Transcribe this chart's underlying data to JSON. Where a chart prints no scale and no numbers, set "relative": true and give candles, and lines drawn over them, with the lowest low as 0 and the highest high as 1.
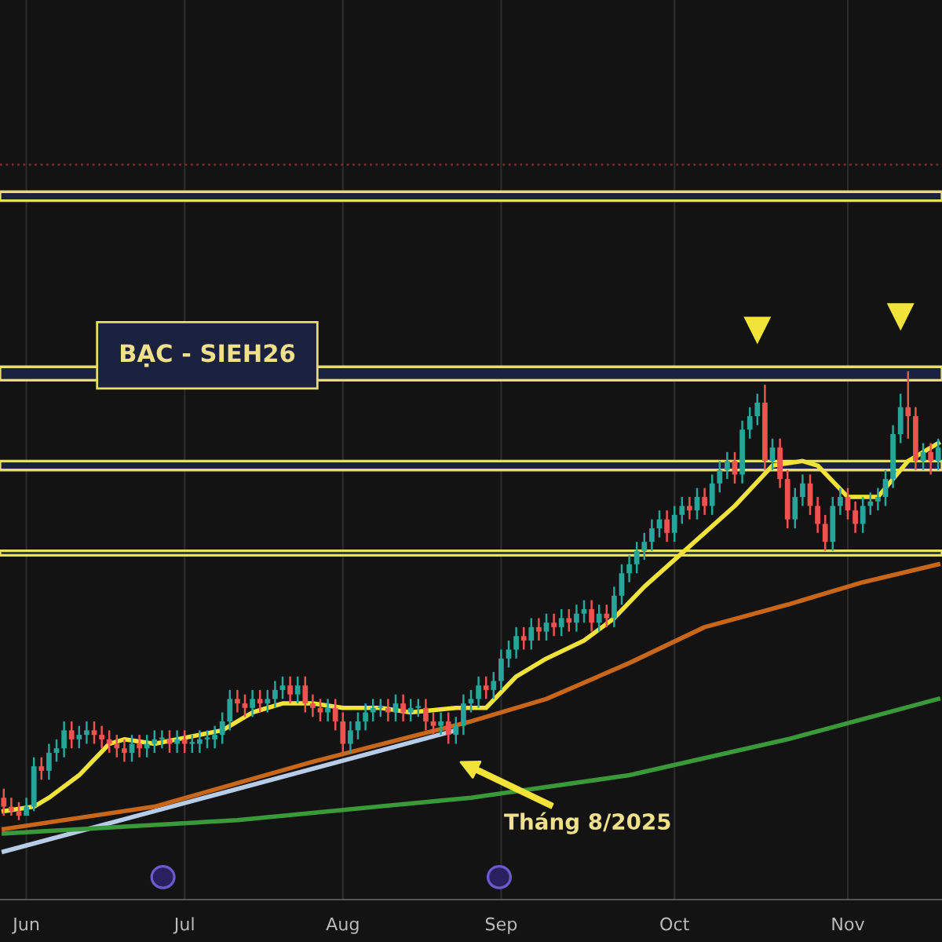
{
  "chart_data": {
    "type": "candlestick",
    "title": "BẠC - SIEH26",
    "relative": true,
    "grid": "x",
    "categories": [
      null,
      null,
      null,
      "Jun",
      null,
      null,
      null,
      null,
      null,
      null,
      null,
      null,
      null,
      null,
      null,
      null,
      null,
      null,
      null,
      null,
      null,
      null,
      null,
      null,
      "Jul",
      null,
      null,
      null,
      null,
      null,
      null,
      null,
      null,
      null,
      null,
      null,
      null,
      null,
      null,
      null,
      null,
      null,
      null,
      null,
      null,
      "Aug",
      null,
      null,
      null,
      null,
      null,
      null,
      null,
      null,
      null,
      null,
      null,
      null,
      null,
      null,
      null,
      null,
      null,
      null,
      null,
      null,
      "Sep",
      null,
      null,
      null,
      null,
      null,
      null,
      null,
      null,
      null,
      null,
      null,
      null,
      null,
      null,
      null,
      null,
      null,
      null,
      null,
      null,
      null,
      null,
      "Oct",
      null,
      null,
      null,
      null,
      null,
      null,
      null,
      null,
      null,
      null,
      null,
      null,
      null,
      null,
      null,
      null,
      null,
      null,
      null,
      null,
      null,
      null,
      "Nov",
      null,
      null,
      null,
      null,
      null,
      null,
      null,
      null,
      null,
      null,
      null,
      null
    ],
    "ohlc": [
      [
        0.05,
        0.07,
        0.01,
        0.03
      ],
      [
        0.03,
        0.05,
        0.01,
        0.02
      ],
      [
        0.02,
        0.04,
        0,
        0.01
      ],
      [
        0.01,
        0.05,
        0.01,
        0.03
      ],
      [
        0.03,
        0.14,
        0.02,
        0.12
      ],
      [
        0.12,
        0.14,
        0.09,
        0.11
      ],
      [
        0.11,
        0.17,
        0.09,
        0.15
      ],
      [
        0.15,
        0.18,
        0.13,
        0.16
      ],
      [
        0.16,
        0.22,
        0.14,
        0.2
      ],
      [
        0.2,
        0.22,
        0.16,
        0.18
      ],
      [
        0.18,
        0.21,
        0.16,
        0.19
      ],
      [
        0.19,
        0.22,
        0.17,
        0.2
      ],
      [
        0.2,
        0.22,
        0.17,
        0.19
      ],
      [
        0.19,
        0.21,
        0.16,
        0.18
      ],
      [
        0.18,
        0.2,
        0.15,
        0.17
      ],
      [
        0.17,
        0.19,
        0.14,
        0.16
      ],
      [
        0.16,
        0.18,
        0.13,
        0.15
      ],
      [
        0.15,
        0.19,
        0.13,
        0.17
      ],
      [
        0.17,
        0.19,
        0.14,
        0.16
      ],
      [
        0.16,
        0.19,
        0.14,
        0.17
      ],
      [
        0.17,
        0.2,
        0.15,
        0.18
      ],
      [
        0.18,
        0.2,
        0.16,
        0.18
      ],
      [
        0.18,
        0.2,
        0.15,
        0.17
      ],
      [
        0.17,
        0.2,
        0.15,
        0.18
      ],
      [
        0.18,
        0.2,
        0.15,
        0.17
      ],
      [
        0.17,
        0.19,
        0.15,
        0.17
      ],
      [
        0.17,
        0.2,
        0.15,
        0.18
      ],
      [
        0.18,
        0.2,
        0.16,
        0.18
      ],
      [
        0.18,
        0.21,
        0.16,
        0.19
      ],
      [
        0.19,
        0.24,
        0.17,
        0.22
      ],
      [
        0.22,
        0.29,
        0.2,
        0.27
      ],
      [
        0.27,
        0.29,
        0.24,
        0.26
      ],
      [
        0.26,
        0.28,
        0.23,
        0.25
      ],
      [
        0.25,
        0.29,
        0.23,
        0.27
      ],
      [
        0.27,
        0.29,
        0.24,
        0.26
      ],
      [
        0.26,
        0.29,
        0.24,
        0.27
      ],
      [
        0.27,
        0.31,
        0.25,
        0.29
      ],
      [
        0.29,
        0.32,
        0.27,
        0.3
      ],
      [
        0.3,
        0.32,
        0.26,
        0.28
      ],
      [
        0.28,
        0.32,
        0.26,
        0.3
      ],
      [
        0.3,
        0.32,
        0.24,
        0.26
      ],
      [
        0.26,
        0.28,
        0.23,
        0.25
      ],
      [
        0.25,
        0.27,
        0.22,
        0.24
      ],
      [
        0.24,
        0.27,
        0.22,
        0.25
      ],
      [
        0.25,
        0.27,
        0.2,
        0.22
      ],
      [
        0.22,
        0.24,
        0.15,
        0.17
      ],
      [
        0.17,
        0.22,
        0.15,
        0.2
      ],
      [
        0.2,
        0.24,
        0.18,
        0.22
      ],
      [
        0.22,
        0.26,
        0.2,
        0.24
      ],
      [
        0.24,
        0.27,
        0.22,
        0.25
      ],
      [
        0.25,
        0.27,
        0.23,
        0.25
      ],
      [
        0.25,
        0.27,
        0.22,
        0.24
      ],
      [
        0.24,
        0.28,
        0.22,
        0.26
      ],
      [
        0.26,
        0.28,
        0.22,
        0.24
      ],
      [
        0.24,
        0.27,
        0.22,
        0.25
      ],
      [
        0.25,
        0.27,
        0.23,
        0.25
      ],
      [
        0.25,
        0.27,
        0.2,
        0.22
      ],
      [
        0.22,
        0.24,
        0.19,
        0.21
      ],
      [
        0.21,
        0.24,
        0.19,
        0.22
      ],
      [
        0.22,
        0.24,
        0.17,
        0.19
      ],
      [
        0.19,
        0.23,
        0.17,
        0.21
      ],
      [
        0.21,
        0.28,
        0.19,
        0.26
      ],
      [
        0.26,
        0.29,
        0.24,
        0.27
      ],
      [
        0.27,
        0.32,
        0.25,
        0.3
      ],
      [
        0.3,
        0.32,
        0.27,
        0.29
      ],
      [
        0.29,
        0.33,
        0.27,
        0.31
      ],
      [
        0.31,
        0.38,
        0.29,
        0.36
      ],
      [
        0.36,
        0.4,
        0.34,
        0.38
      ],
      [
        0.38,
        0.43,
        0.36,
        0.41
      ],
      [
        0.41,
        0.43,
        0.38,
        0.4
      ],
      [
        0.4,
        0.45,
        0.38,
        0.43
      ],
      [
        0.43,
        0.45,
        0.4,
        0.42
      ],
      [
        0.42,
        0.46,
        0.4,
        0.44
      ],
      [
        0.44,
        0.46,
        0.41,
        0.43
      ],
      [
        0.43,
        0.47,
        0.41,
        0.45
      ],
      [
        0.45,
        0.47,
        0.42,
        0.44
      ],
      [
        0.44,
        0.48,
        0.42,
        0.46
      ],
      [
        0.46,
        0.49,
        0.44,
        0.47
      ],
      [
        0.47,
        0.49,
        0.42,
        0.44
      ],
      [
        0.44,
        0.48,
        0.42,
        0.46
      ],
      [
        0.46,
        0.48,
        0.43,
        0.45
      ],
      [
        0.45,
        0.52,
        0.43,
        0.5
      ],
      [
        0.5,
        0.57,
        0.48,
        0.55
      ],
      [
        0.55,
        0.59,
        0.53,
        0.57
      ],
      [
        0.57,
        0.62,
        0.55,
        0.6
      ],
      [
        0.6,
        0.64,
        0.58,
        0.62
      ],
      [
        0.62,
        0.67,
        0.6,
        0.65
      ],
      [
        0.65,
        0.69,
        0.63,
        0.67
      ],
      [
        0.67,
        0.69,
        0.62,
        0.64
      ],
      [
        0.64,
        0.7,
        0.62,
        0.68
      ],
      [
        0.68,
        0.72,
        0.66,
        0.7
      ],
      [
        0.7,
        0.72,
        0.67,
        0.69
      ],
      [
        0.69,
        0.74,
        0.67,
        0.72
      ],
      [
        0.72,
        0.74,
        0.68,
        0.7
      ],
      [
        0.7,
        0.77,
        0.68,
        0.75
      ],
      [
        0.75,
        0.8,
        0.73,
        0.78
      ],
      [
        0.78,
        0.82,
        0.76,
        0.8
      ],
      [
        0.8,
        0.82,
        0.75,
        0.77
      ],
      [
        0.77,
        0.89,
        0.75,
        0.87
      ],
      [
        0.87,
        0.92,
        0.85,
        0.9
      ],
      [
        0.9,
        0.95,
        0.88,
        0.93
      ],
      [
        0.93,
        0.97,
        0.78,
        0.8
      ],
      [
        0.8,
        0.85,
        0.78,
        0.83
      ],
      [
        0.83,
        0.85,
        0.74,
        0.76
      ],
      [
        0.76,
        0.78,
        0.65,
        0.67
      ],
      [
        0.67,
        0.74,
        0.65,
        0.72
      ],
      [
        0.72,
        0.77,
        0.7,
        0.75
      ],
      [
        0.75,
        0.77,
        0.68,
        0.7
      ],
      [
        0.7,
        0.72,
        0.64,
        0.66
      ],
      [
        0.66,
        0.68,
        0.6,
        0.62
      ],
      [
        0.62,
        0.72,
        0.6,
        0.7
      ],
      [
        0.7,
        0.74,
        0.68,
        0.72
      ],
      [
        0.72,
        0.74,
        0.67,
        0.69
      ],
      [
        0.69,
        0.71,
        0.64,
        0.66
      ],
      [
        0.66,
        0.72,
        0.64,
        0.7
      ],
      [
        0.7,
        0.73,
        0.68,
        0.71
      ],
      [
        0.71,
        0.74,
        0.69,
        0.72
      ],
      [
        0.72,
        0.78,
        0.7,
        0.76
      ],
      [
        0.76,
        0.88,
        0.74,
        0.86
      ],
      [
        0.86,
        0.95,
        0.84,
        0.92
      ],
      [
        0.92,
        1.0,
        0.85,
        0.9
      ],
      [
        0.9,
        0.92,
        0.78,
        0.8
      ],
      [
        0.8,
        0.84,
        0.78,
        0.82
      ],
      [
        0.82,
        0.84,
        0.77,
        0.8
      ],
      [
        0.8,
        0.85,
        0.78,
        0.83
      ]
    ],
    "series": [
      {
        "type": "line",
        "color": "#b8cce8",
        "values": [
          -0.07,
          null,
          null,
          null,
          null,
          null,
          null,
          null,
          null,
          null,
          null,
          null,
          null,
          null,
          null,
          null,
          null,
          null,
          null,
          null,
          null,
          null,
          null,
          null,
          null,
          null,
          null,
          null,
          null,
          null,
          null,
          null,
          null,
          null,
          null,
          null,
          null,
          null,
          null,
          null,
          null,
          null,
          null,
          null,
          null,
          null,
          null,
          null,
          null,
          null,
          null,
          null,
          null,
          null,
          null,
          null,
          null,
          null,
          null,
          null,
          0.2,
          null,
          null,
          null,
          null,
          null,
          null,
          null,
          null,
          null,
          null,
          null,
          null,
          null,
          null,
          null,
          null,
          null,
          null,
          null,
          null,
          null,
          null,
          null,
          null,
          null,
          null,
          null,
          null,
          null,
          null,
          null,
          null,
          null,
          null,
          null,
          null,
          null,
          null,
          null,
          null,
          null,
          null,
          null,
          null,
          null,
          null,
          null,
          null,
          null,
          null,
          null,
          null,
          null,
          null,
          null,
          null,
          null,
          null,
          null,
          null,
          null,
          null,
          null,
          null
        ]
      },
      {
        "type": "line",
        "color": "#3a9a3a",
        "values": [
          -0.03,
          null,
          null,
          null,
          null,
          null,
          null,
          null,
          null,
          null,
          null,
          null,
          null,
          null,
          null,
          null,
          null,
          null,
          null,
          null,
          null,
          null,
          null,
          null,
          null,
          null,
          null,
          null,
          null,
          null,
          null,
          0,
          null,
          null,
          null,
          null,
          null,
          null,
          null,
          null,
          null,
          null,
          null,
          null,
          null,
          null,
          null,
          null,
          null,
          null,
          null,
          null,
          null,
          null,
          null,
          null,
          null,
          null,
          null,
          null,
          null,
          null,
          0.05,
          null,
          null,
          null,
          null,
          null,
          null,
          null,
          null,
          null,
          null,
          null,
          null,
          null,
          null,
          null,
          null,
          null,
          null,
          null,
          null,
          0.1,
          null,
          null,
          null,
          null,
          null,
          null,
          null,
          null,
          null,
          null,
          null,
          null,
          null,
          null,
          null,
          null,
          null,
          null,
          null,
          null,
          0.18,
          null,
          null,
          null,
          null,
          null,
          null,
          null,
          null,
          null,
          null,
          null,
          null,
          null,
          null,
          null,
          null,
          null,
          null,
          null,
          0.27
        ]
      },
      {
        "type": "line",
        "color": "#c8661a",
        "values": [
          -0.02,
          null,
          null,
          null,
          null,
          null,
          null,
          null,
          null,
          null,
          null,
          null,
          null,
          null,
          null,
          null,
          null,
          null,
          null,
          null,
          0.03,
          null,
          null,
          null,
          null,
          null,
          null,
          null,
          null,
          null,
          null,
          null,
          null,
          null,
          null,
          null,
          null,
          null,
          null,
          null,
          null,
          0.13,
          null,
          null,
          null,
          null,
          null,
          null,
          null,
          null,
          null,
          null,
          null,
          null,
          null,
          null,
          null,
          null,
          null,
          null,
          null,
          null,
          0.22,
          null,
          null,
          null,
          null,
          null,
          null,
          null,
          null,
          null,
          0.27,
          null,
          null,
          null,
          null,
          null,
          null,
          null,
          null,
          null,
          null,
          0.35,
          null,
          null,
          null,
          null,
          null,
          null,
          null,
          null,
          null,
          0.43,
          null,
          null,
          null,
          null,
          null,
          null,
          null,
          null,
          null,
          null,
          0.48,
          null,
          null,
          null,
          null,
          null,
          null,
          null,
          null,
          null,
          0.53,
          null,
          null,
          null,
          null,
          null,
          null,
          null,
          null,
          null,
          0.57
        ]
      },
      {
        "type": "line",
        "color": "#f2e33a",
        "values": [
          0.02,
          null,
          null,
          null,
          0.03,
          null,
          0.05,
          null,
          null,
          null,
          0.1,
          null,
          null,
          null,
          0.17,
          null,
          0.18,
          null,
          null,
          null,
          0.17,
          null,
          null,
          null,
          null,
          null,
          null,
          null,
          null,
          0.2,
          null,
          null,
          null,
          0.24,
          null,
          null,
          null,
          0.26,
          null,
          null,
          null,
          0.26,
          null,
          null,
          null,
          0.25,
          null,
          null,
          null,
          null,
          0.25,
          null,
          null,
          null,
          0.24,
          null,
          null,
          null,
          null,
          null,
          0.25,
          null,
          null,
          null,
          0.25,
          null,
          null,
          null,
          0.32,
          null,
          null,
          null,
          0.36,
          null,
          null,
          null,
          null,
          0.4,
          null,
          null,
          null,
          0.45,
          null,
          null,
          null,
          0.52,
          null,
          null,
          null,
          0.58,
          null,
          null,
          null,
          0.64,
          null,
          null,
          null,
          0.7,
          null,
          null,
          null,
          null,
          0.79,
          null,
          null,
          null,
          0.8,
          null,
          0.79,
          null,
          null,
          null,
          0.72,
          null,
          null,
          null,
          0.72,
          null,
          null,
          null,
          0.8,
          null,
          null,
          null,
          0.84
        ]
      }
    ],
    "bands": [
      {
        "axis": "y",
        "from": 1.38,
        "to": 1.4,
        "color": "#e8dc6a"
      },
      {
        "axis": "y",
        "from": 0.98,
        "to": 1.01,
        "color": "#e8dc6a"
      },
      {
        "axis": "y",
        "from": 0.78,
        "to": 0.8,
        "color": "#e8dc6a"
      },
      {
        "axis": "y",
        "from": 0.59,
        "to": 0.6,
        "color": "#e8dc6a"
      }
    ],
    "ref_lines": [
      {
        "axis": "y",
        "value": 1.46,
        "color": "#7a2a32",
        "line_style": "dotted"
      }
    ],
    "annotations": [
      "Tháng 8/2025"
    ]
  }
}
